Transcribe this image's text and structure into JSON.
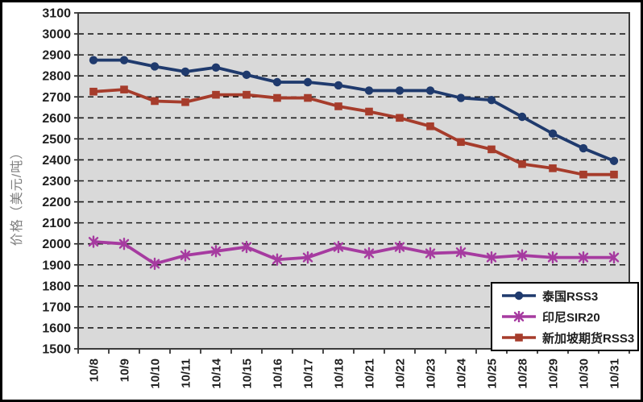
{
  "chart_data": {
    "type": "line",
    "title": "",
    "ylabel": "价格（美元/吨）",
    "xlabel": "",
    "x_categories": [
      "10/8",
      "10/9",
      "10/10",
      "10/11",
      "10/14",
      "10/15",
      "10/16",
      "10/17",
      "10/18",
      "10/21",
      "10/22",
      "10/23",
      "10/24",
      "10/25",
      "10/28",
      "10/29",
      "10/30",
      "10/31"
    ],
    "ylim": [
      1500,
      3100
    ],
    "ytick_step": 100,
    "grid": "horizontal-dashed",
    "legend_position": "inside-bottom-right",
    "colors": {
      "plot_bg": "#d9d9d9",
      "grid": "#1c1c1c",
      "axis_text": "#1f1f1f",
      "ylabel_text": "#7f7f7f",
      "frame": "#000000",
      "plot_border": "#3a3a3a"
    },
    "series": [
      {
        "name": "泰国RSS3",
        "marker": "circle",
        "color": "#1f3a6d",
        "values": [
          2875,
          2875,
          2845,
          2820,
          2840,
          2805,
          2770,
          2770,
          2755,
          2730,
          2730,
          2730,
          2695,
          2685,
          2605,
          2525,
          2455,
          2395
        ]
      },
      {
        "name": "印尼SIR20",
        "marker": "asterisk",
        "color": "#a63ba0",
        "values": [
          2010,
          2000,
          1905,
          1945,
          1965,
          1985,
          1925,
          1935,
          1985,
          1955,
          1985,
          1955,
          1960,
          1935,
          1945,
          1935,
          1935,
          1935
        ]
      },
      {
        "name": "新加坡期货RSS3",
        "marker": "square",
        "color": "#a63c2b",
        "values": [
          2725,
          2735,
          2680,
          2675,
          2710,
          2710,
          2695,
          2695,
          2655,
          2630,
          2600,
          2560,
          2485,
          2450,
          2380,
          2360,
          2330,
          2330
        ]
      }
    ]
  }
}
